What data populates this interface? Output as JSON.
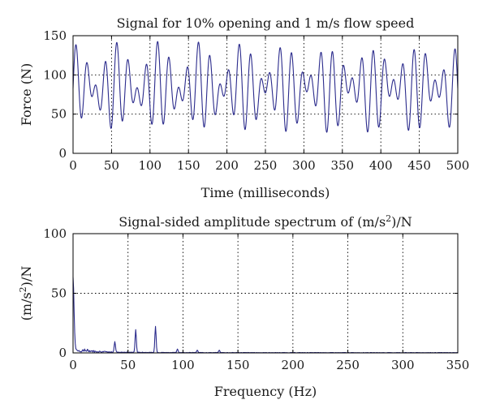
{
  "chart_data": [
    {
      "type": "line",
      "title": "Signal for 10% opening and 1 m/s flow speed",
      "xlabel": "Time (milliseconds)",
      "ylabel": "Force (N)",
      "xlim": [
        0,
        500
      ],
      "ylim": [
        0,
        150
      ],
      "xticks": [
        "0",
        "50",
        "100",
        "150",
        "200",
        "250",
        "300",
        "350",
        "400",
        "450",
        "500"
      ],
      "yticks": [
        "0",
        "50",
        "100",
        "150"
      ],
      "grid": true,
      "color": "#2b2b8c",
      "signal": {
        "mean": 83,
        "components": [
          {
            "amplitude": 30,
            "frequency_hz": 75
          },
          {
            "amplitude": 24,
            "frequency_hz": 57
          },
          {
            "amplitude": 6,
            "frequency_hz": 20
          }
        ]
      }
    },
    {
      "type": "line",
      "title": "Signal-sided amplitude spectrum of (m/s²)/N",
      "title_parts": [
        "Signal-sided amplitude spectrum of (m/s",
        "2",
        ")/N"
      ],
      "xlabel": "Frequency (Hz)",
      "ylabel": "(m/s²)/N",
      "ylabel_parts": [
        "(m/s",
        "2",
        ")/N"
      ],
      "xlim": [
        0,
        350
      ],
      "ylim": [
        0,
        100
      ],
      "xticks": [
        "0",
        "50",
        "100",
        "150",
        "200",
        "250",
        "300",
        "350"
      ],
      "yticks": [
        "0",
        "50",
        "100"
      ],
      "grid": true,
      "color": "#2b2b8c",
      "peaks": [
        {
          "x": 0,
          "y": 53
        },
        {
          "x": 38,
          "y": 9
        },
        {
          "x": 57,
          "y": 19
        },
        {
          "x": 75,
          "y": 22
        },
        {
          "x": 95,
          "y": 3
        },
        {
          "x": 113,
          "y": 2
        },
        {
          "x": 133,
          "y": 2
        }
      ]
    }
  ]
}
